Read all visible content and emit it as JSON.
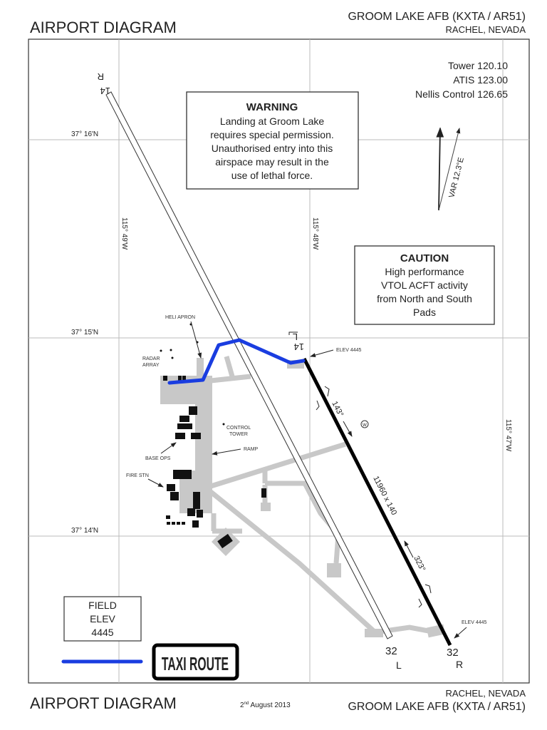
{
  "header": {
    "title": "AIRPORT DIAGRAM",
    "airport": "GROOM LAKE AFB (KXTA / AR51)",
    "location": "RACHEL, NEVADA"
  },
  "footer": {
    "title": "AIRPORT DIAGRAM",
    "date_day": "2",
    "date_suffix": "nd",
    "date_rest": " August 2013",
    "location": "RACHEL, NEVADA",
    "airport": "GROOM LAKE AFB (KXTA / AR51)"
  },
  "frequencies": [
    "Tower 120.10",
    "ATIS 123.00",
    "Nellis Control 126.65"
  ],
  "warning": {
    "title": "WARNING",
    "lines": [
      "Landing at Groom Lake",
      "requires special permission.",
      "Unauthorised entry into this",
      "airspace may result in the",
      "use of lethal force."
    ]
  },
  "caution": {
    "title": "CAUTION",
    "lines": [
      "High performance",
      "VTOL ACFT activity",
      "from North and South",
      "Pads"
    ]
  },
  "grid": {
    "lat": [
      "37° 16'N",
      "37° 15'N",
      "37° 14'N"
    ],
    "lon": [
      "115° 49'W",
      "115° 48'W",
      "115° 47'W"
    ]
  },
  "variation": "VAR 12.3°E",
  "runways": {
    "left_north": "14",
    "left_north_suffix": "R",
    "left_south": "32",
    "left_south_suffix": "L",
    "right_north": "14",
    "right_north_suffix": "L",
    "right_south": "32",
    "right_south_suffix": "R",
    "dimensions": "11960 x 140",
    "heading_1": "143°",
    "heading_2": "323°",
    "elev_north": "ELEV 4445",
    "elev_south": "ELEV 4445",
    "windcone": "W"
  },
  "labels": {
    "heli_apron": "HELI APRON",
    "radar_1": "RADAR",
    "radar_2": "ARRAY",
    "control_1": "CONTROL",
    "control_2": "TOWER",
    "ramp": "RAMP",
    "base_ops": "BASE OPS",
    "fire_stn": "FIRE STN"
  },
  "field_elev": [
    "FIELD",
    "ELEV",
    "4445"
  ],
  "legend": {
    "taxi_route": "TAXI ROUTE",
    "taxi_route_color": "#1a3de0"
  },
  "colors": {
    "taxiway": "#c8c8c8",
    "grid": "#bbbbbb"
  }
}
